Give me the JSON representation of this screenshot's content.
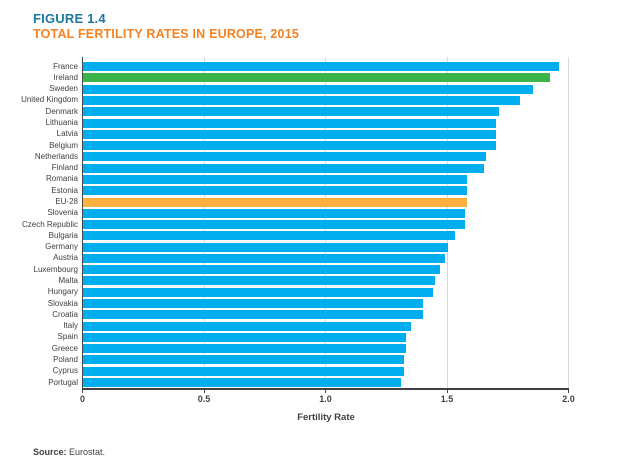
{
  "figure": {
    "label": "FIGURE 1.4",
    "title": "TOTAL FERTILITY RATES IN EUROPE, 2015"
  },
  "source": {
    "label": "Source:",
    "text": " Eurostat."
  },
  "colors": {
    "bar_default": "#00AEEF",
    "bar_ireland": "#39B54A",
    "bar_eu28": "#FBB03F",
    "figure_label_text": "#1A7A9C",
    "figure_title_text": "#F58220",
    "axis_text": "#414042",
    "gridline": "#d9d9d9"
  },
  "chart_data": {
    "type": "bar",
    "orientation": "horizontal",
    "title": "TOTAL FERTILITY RATES IN EUROPE, 2015",
    "xlabel": "Fertility Rate",
    "ylabel": "",
    "xlim": [
      0,
      2.0
    ],
    "grid": true,
    "xtick_values": [
      0,
      0.5,
      1.0,
      1.5,
      2.0
    ],
    "xtick_labels": [
      "0",
      "0.5",
      "1.0",
      "1.5",
      "2.0"
    ],
    "categories": [
      "France",
      "Ireland",
      "Sweden",
      "United Kingdom",
      "Denmark",
      "Lithuania",
      "Latvia",
      "Belgium",
      "Netherlands",
      "Finland",
      "Romania",
      "Estonia",
      "EU-28",
      "Slovenia",
      "Czech Republic",
      "Bulgaria",
      "Germany",
      "Austria",
      "Luxembourg",
      "Malta",
      "Hungary",
      "Slovakia",
      "Croatia",
      "Italy",
      "Spain",
      "Greece",
      "Poland",
      "Cyprus",
      "Portugal"
    ],
    "values": [
      1.96,
      1.92,
      1.85,
      1.8,
      1.71,
      1.7,
      1.7,
      1.7,
      1.66,
      1.65,
      1.58,
      1.58,
      1.58,
      1.57,
      1.57,
      1.53,
      1.5,
      1.49,
      1.47,
      1.45,
      1.44,
      1.4,
      1.4,
      1.35,
      1.33,
      1.33,
      1.32,
      1.32,
      1.31
    ],
    "highlighted_bars": {
      "Ireland": "#39B54A",
      "EU-28": "#FBB03F"
    }
  }
}
